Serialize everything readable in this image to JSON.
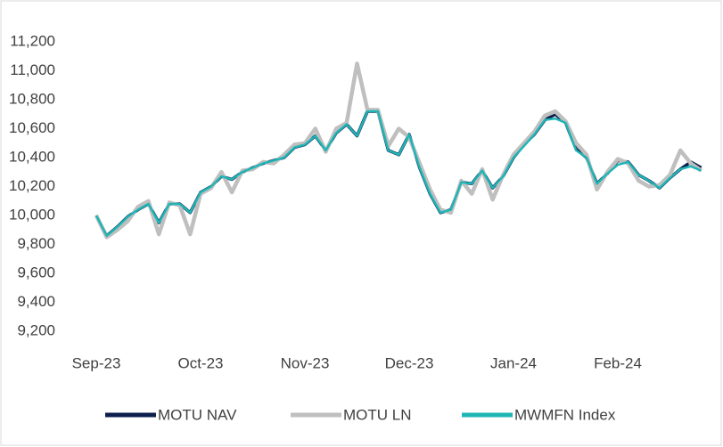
{
  "chart_data": {
    "type": "line",
    "categories": [
      "Sep-23",
      null,
      null,
      null,
      null,
      null,
      null,
      null,
      null,
      null,
      "Oct-23",
      null,
      null,
      null,
      null,
      null,
      null,
      null,
      null,
      null,
      "Nov-23",
      null,
      null,
      null,
      null,
      null,
      null,
      null,
      null,
      null,
      "Dec-23",
      null,
      null,
      null,
      null,
      null,
      null,
      null,
      null,
      null,
      "Jan-24",
      null,
      null,
      null,
      null,
      null,
      null,
      null,
      null,
      null,
      "Feb-24",
      null,
      null,
      null,
      null,
      null,
      null,
      null,
      null
    ],
    "series": [
      {
        "name": "MOTU NAV",
        "color": "#0d1f4f",
        "values": [
          10000,
          9860,
          9920,
          9990,
          10040,
          10080,
          9950,
          10080,
          10080,
          10020,
          10160,
          10200,
          10270,
          10250,
          10300,
          10330,
          10360,
          10380,
          10400,
          10470,
          10490,
          10550,
          10450,
          10570,
          10630,
          10550,
          10720,
          10720,
          10450,
          10420,
          10560,
          10330,
          10150,
          10020,
          10040,
          10230,
          10220,
          10310,
          10190,
          10270,
          10400,
          10490,
          10560,
          10660,
          10700,
          10640,
          10460,
          10400,
          10220,
          10290,
          10380,
          10370,
          10280,
          10240,
          10190,
          10260,
          10320,
          10370,
          10330
        ]
      },
      {
        "name": "MOTU LN",
        "color": "#bfbfbf",
        "values": [
          10000,
          9850,
          9900,
          9960,
          10060,
          10100,
          9870,
          10090,
          10070,
          9870,
          10150,
          10190,
          10300,
          10160,
          10310,
          10320,
          10370,
          10360,
          10420,
          10490,
          10500,
          10600,
          10440,
          10600,
          10640,
          11050,
          10730,
          10730,
          10480,
          10600,
          10540,
          10360,
          10180,
          10040,
          10020,
          10240,
          10150,
          10320,
          10110,
          10280,
          10420,
          10500,
          10580,
          10690,
          10720,
          10650,
          10500,
          10420,
          10180,
          10300,
          10390,
          10360,
          10240,
          10200,
          10210,
          10280,
          10450,
          10360,
          10310
        ]
      },
      {
        "name": "MWMFN Index",
        "color": "#1fb5b5",
        "values": [
          10000,
          9860,
          9920,
          9990,
          10040,
          10080,
          9950,
          10080,
          10080,
          10020,
          10160,
          10200,
          10270,
          10250,
          10300,
          10330,
          10360,
          10380,
          10400,
          10470,
          10490,
          10550,
          10450,
          10570,
          10630,
          10550,
          10720,
          10720,
          10450,
          10420,
          10560,
          10330,
          10150,
          10020,
          10040,
          10230,
          10220,
          10310,
          10190,
          10270,
          10400,
          10480,
          10560,
          10660,
          10670,
          10640,
          10450,
          10400,
          10220,
          10290,
          10350,
          10370,
          10280,
          10240,
          10190,
          10260,
          10320,
          10340,
          10310
        ]
      }
    ],
    "ylim": [
      9200,
      11200
    ],
    "yticks": [
      {
        "value": 9200,
        "label": "9,200"
      },
      {
        "value": 9400,
        "label": "9,400"
      },
      {
        "value": 9600,
        "label": "9,600"
      },
      {
        "value": 9800,
        "label": "9,800"
      },
      {
        "value": 10000,
        "label": "10,000"
      },
      {
        "value": 10200,
        "label": "10,200"
      },
      {
        "value": 10400,
        "label": "10,400"
      },
      {
        "value": 10600,
        "label": "10,600"
      },
      {
        "value": 10800,
        "label": "10,800"
      },
      {
        "value": 11000,
        "label": "11,000"
      },
      {
        "value": 11200,
        "label": "11,200"
      }
    ],
    "grid": false,
    "legend": "bottom"
  }
}
